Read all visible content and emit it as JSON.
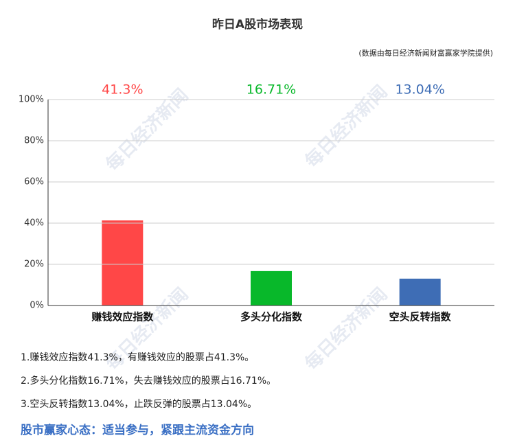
{
  "chart_data": {
    "type": "bar",
    "title": "昨日A股市场表现",
    "subtitle": "(数据由每日经济新闻财富赢家学院提供)",
    "categories": [
      "赚钱效应指数",
      "多头分化指数",
      "空头反转指数"
    ],
    "values": [
      41.3,
      16.71,
      13.04
    ],
    "value_labels": [
      "41.3%",
      "16.71%",
      "13.04%"
    ],
    "colors": [
      "#ff4747",
      "#08b82a",
      "#3e6db5"
    ],
    "ylim": [
      0,
      100
    ],
    "yticks": [
      {
        "value": 0,
        "label": "0%"
      },
      {
        "value": 20,
        "label": "20%"
      },
      {
        "value": 40,
        "label": "40%"
      },
      {
        "value": 60,
        "label": "60%"
      },
      {
        "value": 80,
        "label": "80%"
      },
      {
        "value": 100,
        "label": "100%"
      }
    ],
    "grid": true,
    "watermark": "每日经济新闻"
  },
  "notes": [
    "1.赚钱效应指数41.3%，有赚钱效应的股票占41.3%。",
    "2.多头分化指数16.71%，失去赚钱效应的股票占16.71%。",
    "3.空头反转指数13.04%，止跌反弹的股票占13.04%。"
  ],
  "headline": "股市赢家心态：适当参与，紧跟主流资金方向"
}
